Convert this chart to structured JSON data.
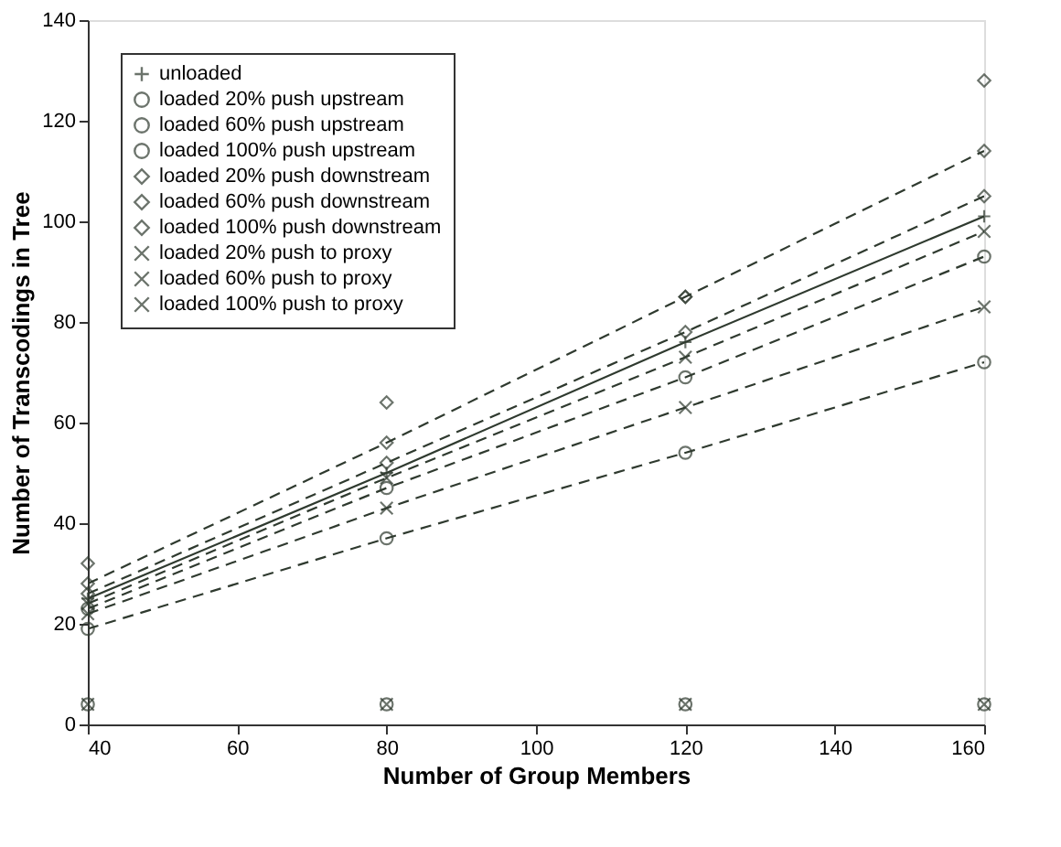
{
  "chart_data": {
    "type": "line",
    "xlabel": "Number of Group Members",
    "ylabel": "Number of Transcodings in Tree",
    "x": [
      40,
      80,
      120,
      160
    ],
    "xlim": [
      40,
      160
    ],
    "xticks": [
      40,
      60,
      80,
      100,
      120,
      140,
      160
    ],
    "ylim": [
      0,
      140
    ],
    "yticks": [
      0,
      20,
      40,
      60,
      80,
      100,
      120,
      140
    ],
    "grid": false,
    "legend": "top left",
    "series": [
      {
        "name": "unloaded",
        "color": "#2f3a2f",
        "marker": "plus",
        "line_style": "solid",
        "values": [
          25,
          50,
          76,
          101
        ]
      },
      {
        "name": "loaded 20% push upstream",
        "color": "#2f3a2f",
        "marker": "circle",
        "line_style": "dashed",
        "values": [
          23,
          47,
          69,
          93
        ]
      },
      {
        "name": "loaded 60% push upstream",
        "color": "#2f3a2f",
        "marker": "circle",
        "line_style": "dashed",
        "values": [
          19,
          37,
          54,
          72
        ]
      },
      {
        "name": "loaded 100% push upstream",
        "type": "scatter",
        "color": "#2f3a2f",
        "marker": "circle",
        "values": [
          4,
          4,
          4,
          4
        ]
      },
      {
        "name": "loaded 20% push downstream",
        "color": "#2f3a2f",
        "marker": "diamond",
        "line_style": "dashed",
        "values": [
          26,
          52,
          78,
          105
        ]
      },
      {
        "name": "loaded 60% push downstream",
        "color": "#2f3a2f",
        "marker": "diamond",
        "line_style": "dashed",
        "values": [
          28,
          56,
          85,
          114
        ]
      },
      {
        "name": "loaded 100% push downstream",
        "type": "scatter",
        "color": "#2f3a2f",
        "marker": "diamond",
        "values": [
          32,
          64,
          85,
          128
        ]
      },
      {
        "name": "loaded 20% push to proxy",
        "color": "#2f3a2f",
        "marker": "cross",
        "line_style": "dashed",
        "values": [
          24,
          49,
          73,
          98
        ]
      },
      {
        "name": "loaded 60% push to proxy",
        "color": "#2f3a2f",
        "marker": "cross",
        "line_style": "dashed",
        "values": [
          22,
          43,
          63,
          83
        ]
      },
      {
        "name": "loaded 100% push to proxy",
        "type": "scatter",
        "color": "#2f3a2f",
        "marker": "cross",
        "values": [
          4,
          4,
          4,
          4
        ]
      }
    ]
  }
}
